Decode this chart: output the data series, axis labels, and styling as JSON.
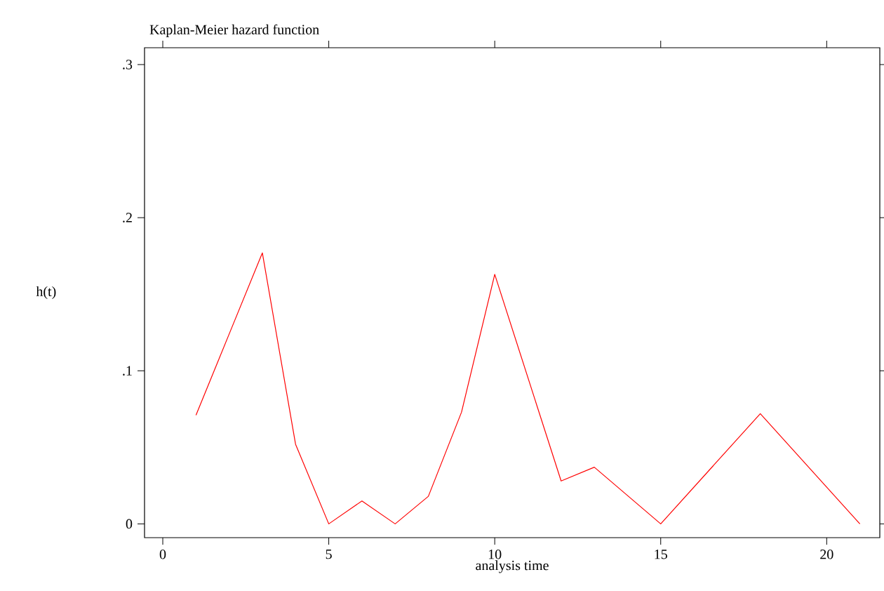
{
  "chart_data": {
    "type": "line",
    "title": "Kaplan-Meier hazard function",
    "xlabel": "analysis time",
    "ylabel": "h(t)",
    "x": [
      1,
      2,
      3,
      4,
      5,
      6,
      7,
      8,
      9,
      10,
      12,
      13,
      15,
      18,
      21
    ],
    "series": [
      {
        "color": "#ff0000",
        "values": [
          0.071,
          0.124,
          0.177,
          0.052,
          0,
          0.015,
          0,
          0.018,
          0.073,
          0.163,
          0.028,
          0.037,
          0,
          0.072,
          0
        ]
      }
    ],
    "xlim": [
      -0.55,
      21.6
    ],
    "ylim": [
      -0.009,
      0.311
    ],
    "xticks": [
      0,
      5,
      10,
      15,
      20
    ],
    "yticks": [
      {
        "value": 0,
        "label": "0"
      },
      {
        "value": 0.1,
        "label": ".1"
      },
      {
        "value": 0.2,
        "label": ".2"
      },
      {
        "value": 0.3,
        "label": ".3"
      }
    ],
    "marker": "none",
    "line_style": "solid"
  }
}
